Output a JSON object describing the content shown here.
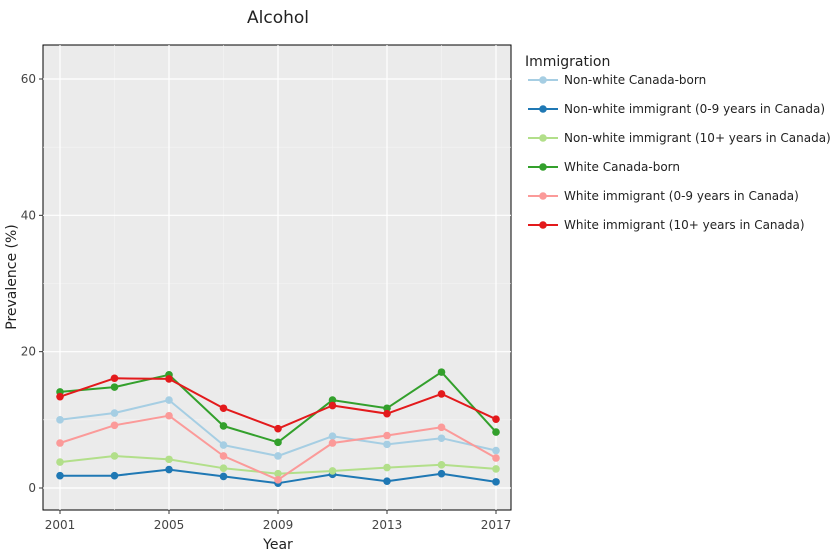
{
  "chart_data": {
    "type": "line",
    "title": "Alcohol",
    "xlabel": "Year",
    "ylabel": "Prevalence (%)",
    "x": [
      2001,
      2003,
      2005,
      2007,
      2009,
      2011,
      2013,
      2015,
      2017
    ],
    "xticks": [
      "2001",
      "2005",
      "2009",
      "2013",
      "2017"
    ],
    "yticks": [
      "0",
      "20",
      "40",
      "60"
    ],
    "xlim": [
      2001,
      2017
    ],
    "ylim": [
      0,
      60
    ],
    "grid": true,
    "legend": {
      "title": "Immigration",
      "placement": "right"
    },
    "series": [
      {
        "name": "Non-white Canada-born",
        "color": "#a6cee3",
        "values": [
          10.0,
          11.0,
          12.9,
          6.3,
          4.7,
          7.6,
          6.4,
          7.3,
          5.5
        ]
      },
      {
        "name": "Non-white immigrant (0-9 years in Canada)",
        "color": "#1f78b4",
        "values": [
          1.8,
          1.8,
          2.7,
          1.7,
          0.7,
          2.0,
          1.0,
          2.1,
          0.9
        ]
      },
      {
        "name": "Non-white immigrant (10+ years in Canada)",
        "color": "#b2df8a",
        "values": [
          3.8,
          4.7,
          4.2,
          2.9,
          2.1,
          2.5,
          3.0,
          3.4,
          2.8
        ]
      },
      {
        "name": "White Canada-born",
        "color": "#33a02c",
        "values": [
          14.1,
          14.8,
          16.6,
          9.1,
          6.7,
          12.9,
          11.7,
          17.0,
          8.2
        ]
      },
      {
        "name": "White immigrant  (0-9 years in Canada)",
        "color": "#fb9a99",
        "values": [
          6.6,
          9.2,
          10.6,
          4.7,
          1.2,
          6.6,
          7.7,
          8.9,
          4.4
        ]
      },
      {
        "name": "White immigrant (10+ years in Canada)",
        "color": "#e31a1c",
        "values": [
          13.4,
          16.1,
          16.0,
          11.7,
          8.7,
          12.1,
          10.9,
          13.8,
          10.1
        ]
      }
    ]
  }
}
